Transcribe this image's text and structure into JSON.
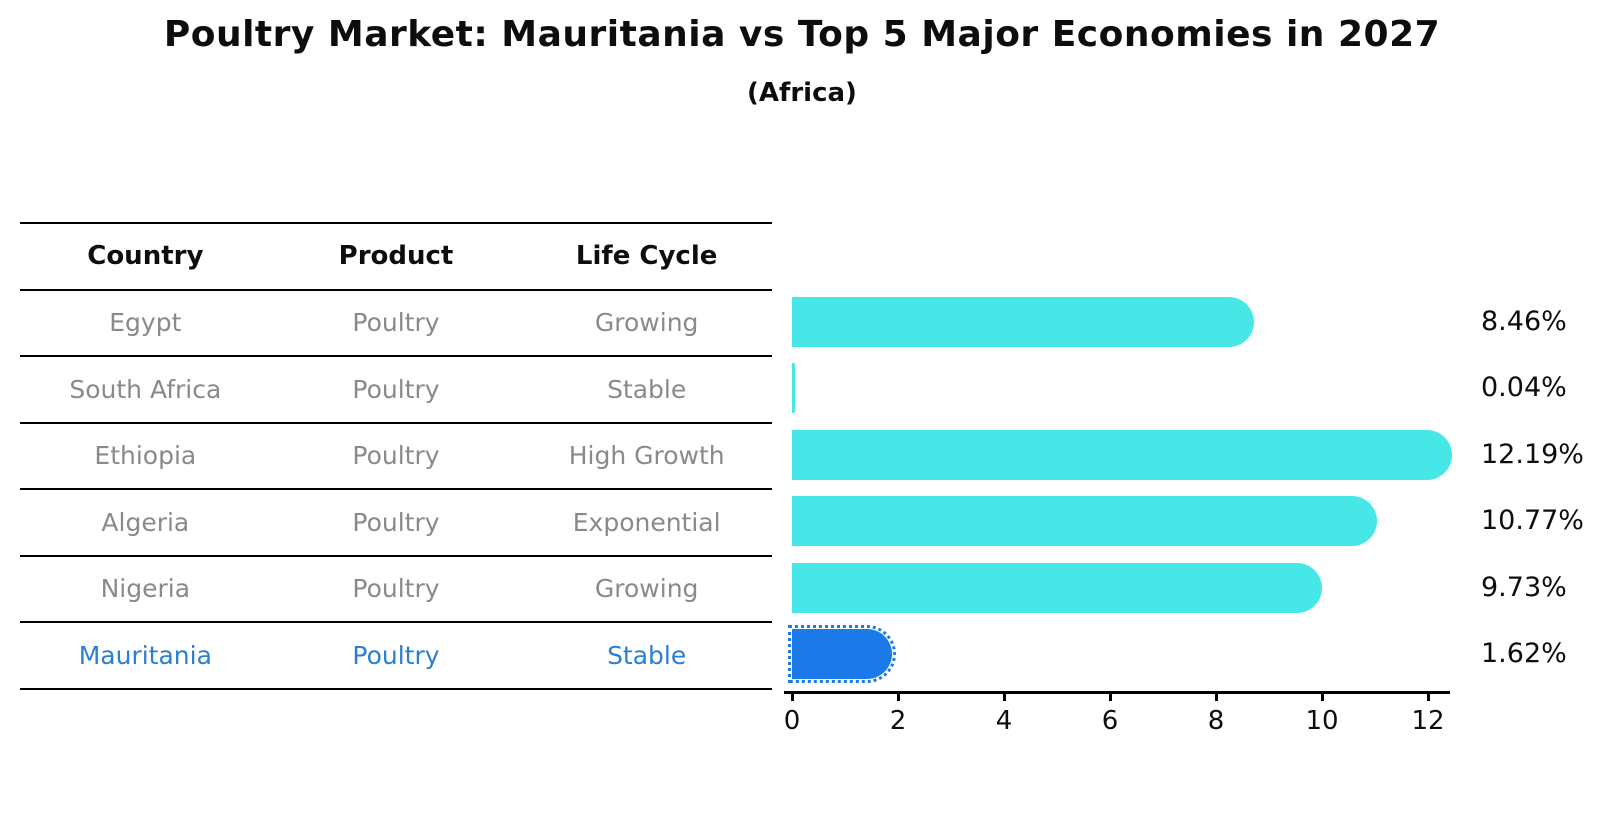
{
  "chart_data": {
    "type": "bar",
    "orientation": "horizontal",
    "title": "Poultry Market: Mauritania vs Top 5 Major Economies in 2027",
    "subtitle": "(Africa)",
    "categories": [
      "Egypt",
      "South Africa",
      "Ethiopia",
      "Algeria",
      "Nigeria",
      "Mauritania"
    ],
    "values": [
      8.46,
      0.04,
      12.19,
      10.77,
      9.73,
      1.62
    ],
    "value_labels": [
      "8.46%",
      "0.04%",
      "12.19%",
      "10.77%",
      "9.73%",
      "1.62%"
    ],
    "highlight_index": 5,
    "xlabel": "",
    "ylabel": "",
    "xticks": [
      0,
      2,
      4,
      6,
      8,
      10,
      12
    ],
    "xlim": [
      0,
      12.4
    ],
    "grid": false,
    "legend_position": "none",
    "bar_color": "#47E7E7",
    "highlight_bar_color": "#1B7AE8"
  },
  "table": {
    "headers": [
      "Country",
      "Product",
      "Life Cycle"
    ],
    "rows": [
      {
        "country": "Egypt",
        "product": "Poultry",
        "life_cycle": "Growing",
        "highlighted": false
      },
      {
        "country": "South Africa",
        "product": "Poultry",
        "life_cycle": "Stable",
        "highlighted": false
      },
      {
        "country": "Ethiopia",
        "product": "Poultry",
        "life_cycle": "High Growth",
        "highlighted": false
      },
      {
        "country": "Algeria",
        "product": "Poultry",
        "life_cycle": "Exponential",
        "highlighted": false
      },
      {
        "country": "Nigeria",
        "product": "Poultry",
        "life_cycle": "Growing",
        "highlighted": false
      },
      {
        "country": "Mauritania",
        "product": "Poultry",
        "life_cycle": "Stable",
        "highlighted": true
      }
    ],
    "text_color": "#8a8a8a",
    "highlight_text_color": "#2B7FD0"
  }
}
